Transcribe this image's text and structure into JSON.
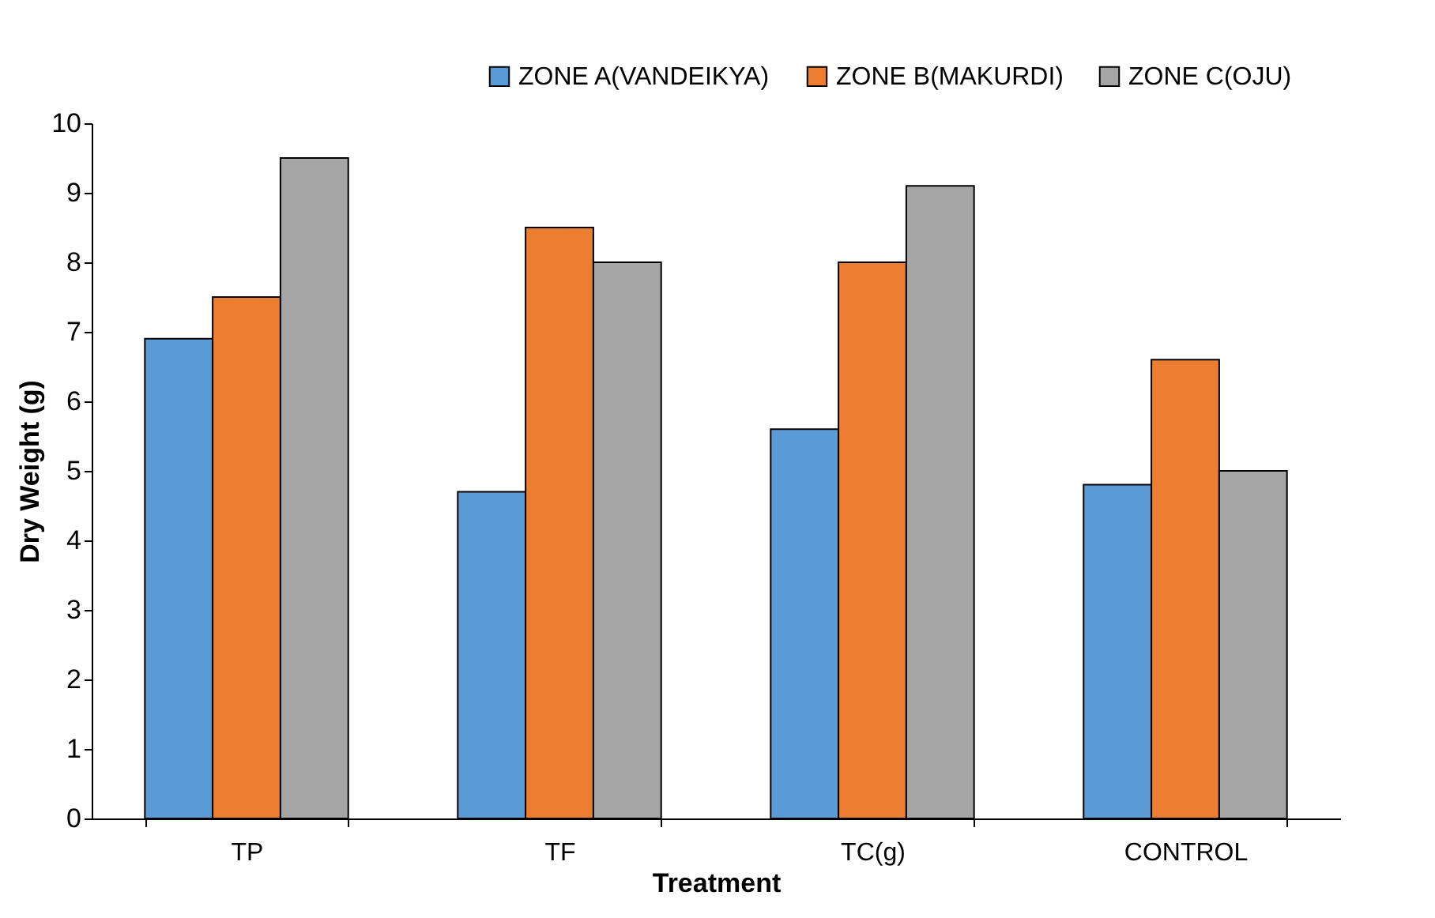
{
  "chart_data": {
    "type": "bar",
    "xlabel": "Treatment",
    "ylabel": "Dry Weight (g)",
    "categories": [
      "TP",
      "TF",
      "TC(g)",
      "CONTROL"
    ],
    "series": [
      {
        "name": "ZONE A(VANDEIKYA)",
        "color": "#5b9bd5",
        "values": [
          6.9,
          4.7,
          5.6,
          4.8
        ]
      },
      {
        "name": "ZONE B(MAKURDI)",
        "color": "#ed7d31",
        "values": [
          7.5,
          8.5,
          8.0,
          6.6
        ]
      },
      {
        "name": "ZONE C(OJU)",
        "color": "#a5a5a5",
        "values": [
          9.5,
          8.0,
          9.1,
          5.0
        ]
      }
    ],
    "ylim": [
      0,
      10
    ],
    "yticks": [
      0,
      1,
      2,
      3,
      4,
      5,
      6,
      7,
      8,
      9,
      10
    ],
    "grid": false,
    "legend": "top right"
  }
}
